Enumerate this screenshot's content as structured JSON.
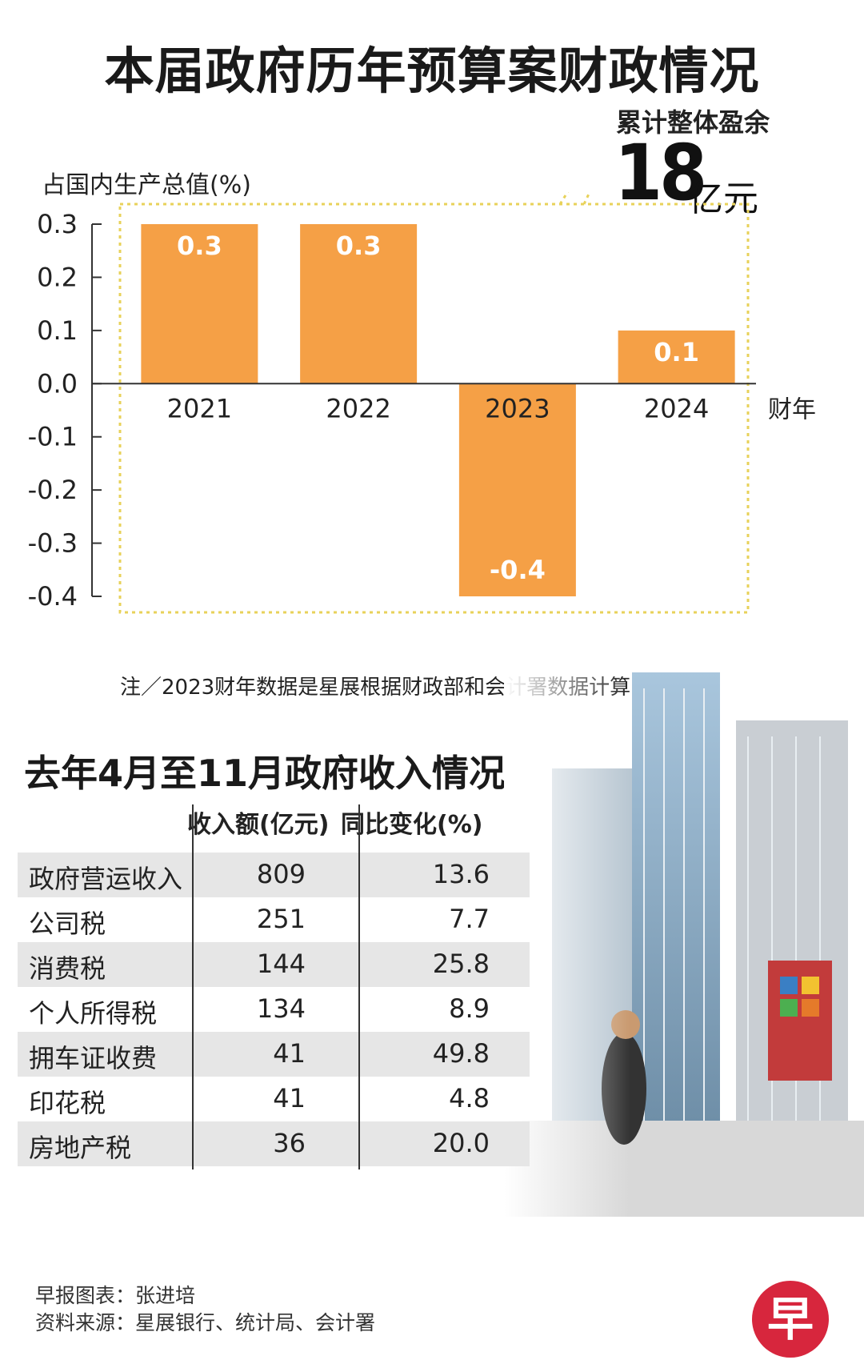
{
  "title": "本届政府历年预算案财政情况",
  "callout": {
    "label": "累计整体盈余",
    "value": "18",
    "unit": "亿元"
  },
  "note": "注／2023财年数据是星展根据财政部和会计署数据计算",
  "colors": {
    "bar": "#f5a046",
    "dotted_box": "#e8d25a",
    "axis": "#333333"
  },
  "chart_data": {
    "type": "bar",
    "title": "本届政府历年预算案财政情况",
    "xlabel": "财年",
    "ylabel": "占国内生产总值(%)",
    "categories": [
      "2021",
      "2022",
      "2023",
      "2024"
    ],
    "values": [
      0.3,
      0.3,
      -0.4,
      0.1
    ],
    "data_labels": [
      "0.3",
      "0.3",
      "-0.4",
      "0.1"
    ],
    "ylim": [
      -0.4,
      0.3
    ],
    "yticks": [
      0.3,
      0.2,
      0.1,
      0.0,
      -0.1,
      -0.2,
      -0.3,
      -0.4
    ],
    "ytick_labels": [
      "0.3",
      "0.2",
      "0.1",
      "0.0",
      "-0.1",
      "-0.2",
      "-0.3",
      "-0.4"
    ],
    "grid": false
  },
  "revenue_section": {
    "title": "去年4月至11月政府收入情况",
    "headers": {
      "name": "",
      "revenue": "收入额(亿元)",
      "change": "同比变化(%)"
    },
    "rows": [
      {
        "name": "政府营运收入",
        "revenue": "809",
        "change": "13.6"
      },
      {
        "name": "公司税",
        "revenue": "251",
        "change": "7.7"
      },
      {
        "name": "消费税",
        "revenue": "144",
        "change": "25.8"
      },
      {
        "name": "个人所得税",
        "revenue": "134",
        "change": "8.9"
      },
      {
        "name": "拥车证收费",
        "revenue": "41",
        "change": "49.8"
      },
      {
        "name": "印花税",
        "revenue": "41",
        "change": "4.8"
      },
      {
        "name": "房地产税",
        "revenue": "36",
        "change": "20.0"
      }
    ]
  },
  "credits": {
    "line1": "早报图表：张进培",
    "line2": "资料来源：星展银行、统计局、会计署"
  },
  "logo": {
    "text": "早"
  }
}
